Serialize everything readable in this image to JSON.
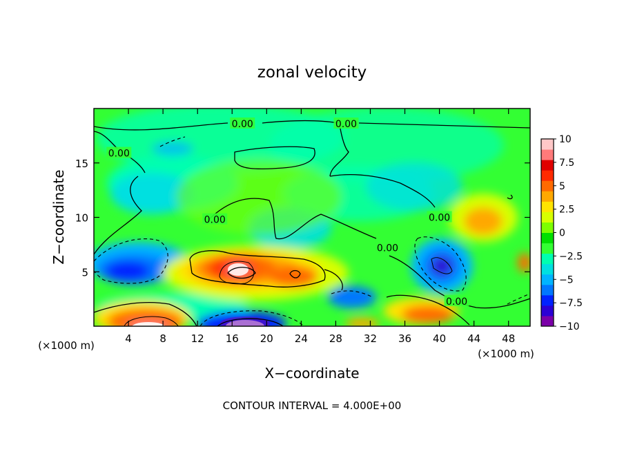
{
  "chart_data": {
    "type": "heatmap",
    "title": "zonal velocity",
    "xlabel": "X−coordinate",
    "ylabel": "Z−coordinate",
    "x_unit_left": "(×1000 m)",
    "x_unit_right": "(×1000 m)",
    "footer": "CONTOUR INTERVAL = 4.000E+00",
    "xlim": [
      0,
      50.5
    ],
    "ylim": [
      0,
      20
    ],
    "x_ticks": [
      4,
      8,
      12,
      16,
      20,
      24,
      28,
      32,
      36,
      40,
      44,
      48
    ],
    "y_ticks": [
      5,
      10,
      15
    ],
    "colorbar": {
      "range": [
        -10,
        10
      ],
      "tick_values": [
        10,
        7.5,
        5,
        2.5,
        0,
        -2.5,
        -5,
        -7.5,
        -10
      ],
      "tick_labels": [
        "10",
        "7.5",
        "5",
        "2.5",
        "0",
        "−2.5",
        "−5",
        "−7.5",
        "−10"
      ],
      "colors": [
        "#7b00a8",
        "#2b00d4",
        "#0022ff",
        "#0077ff",
        "#00b4ff",
        "#00e0e0",
        "#00ffb0",
        "#33ff33",
        "#00e000",
        "#7dff00",
        "#d8ff00",
        "#ffe400",
        "#ffa800",
        "#ff6a00",
        "#ff2a00",
        "#e00000",
        "#ff7a7a",
        "#ffc8c8"
      ]
    },
    "contour_labels": [
      {
        "text": "0.00",
        "x": 17.2,
        "z": 18.6
      },
      {
        "text": "0.00",
        "x": 29.2,
        "z": 18.6
      },
      {
        "text": "0.00",
        "x": 2.9,
        "z": 15.9
      },
      {
        "text": "0.00",
        "x": 14.0,
        "z": 9.8
      },
      {
        "text": "0.00",
        "x": 40.0,
        "z": 10.0
      },
      {
        "text": "0.00",
        "x": 34.0,
        "z": 7.2
      },
      {
        "text": "0.00",
        "x": 42.0,
        "z": 2.3
      }
    ]
  }
}
